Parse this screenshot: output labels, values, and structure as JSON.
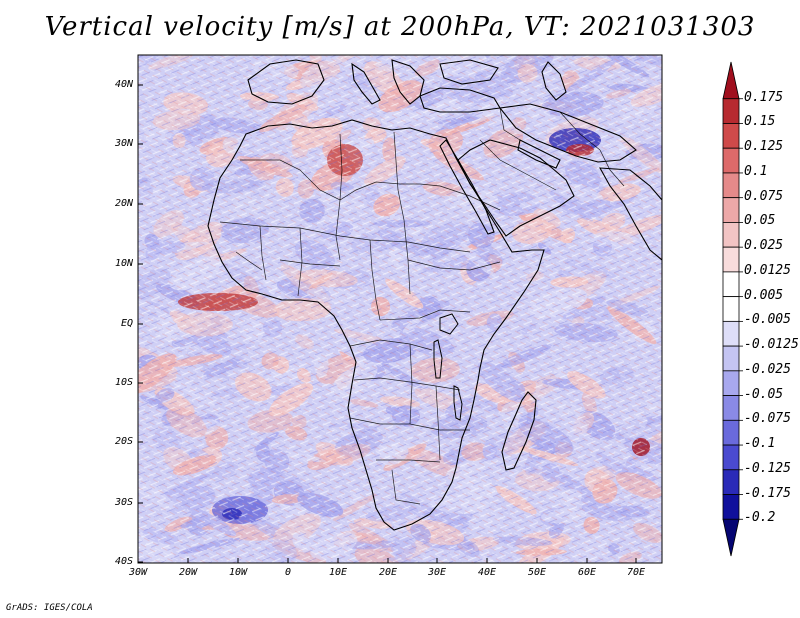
{
  "title": "Vertical velocity [m/s] at 200hPa, VT: 2021031303",
  "credit": "GrADS: IGES/COLA",
  "lat_labels": [
    "40N",
    "30N",
    "20N",
    "10N",
    "EQ",
    "10S",
    "20S",
    "30S",
    "40S"
  ],
  "lon_labels": [
    "30W",
    "20W",
    "10W",
    "0",
    "10E",
    "20E",
    "30E",
    "40E",
    "50E",
    "60E",
    "70E"
  ],
  "colorbar": {
    "levels": [
      "0.175",
      "0.15",
      "0.125",
      "0.1",
      "0.075",
      "0.05",
      "0.025",
      "0.0125",
      "0.005",
      "-0.005",
      "-0.0125",
      "-0.025",
      "-0.05",
      "-0.075",
      "-0.1",
      "-0.125",
      "-0.175",
      "-0.2"
    ],
    "colors": [
      "#a00f1e",
      "#b72a30",
      "#cf4a4a",
      "#dd6a6a",
      "#e58a8a",
      "#eda8a8",
      "#f2c4c4",
      "#f8dcdc",
      "#ffffff",
      "#ffffff",
      "#dedef8",
      "#c4c4f2",
      "#a8a8ee",
      "#8a8ae6",
      "#6a6adc",
      "#4a4ad0",
      "#2a2ab8",
      "#10109c",
      "#050572"
    ]
  },
  "map": {
    "ocean_colors": [
      "#b9b9f2",
      "#f3c9c9",
      "#d8d8f7",
      "#a9a9ee",
      "#efb3b3"
    ],
    "land_tint": "#cfcff5"
  }
}
